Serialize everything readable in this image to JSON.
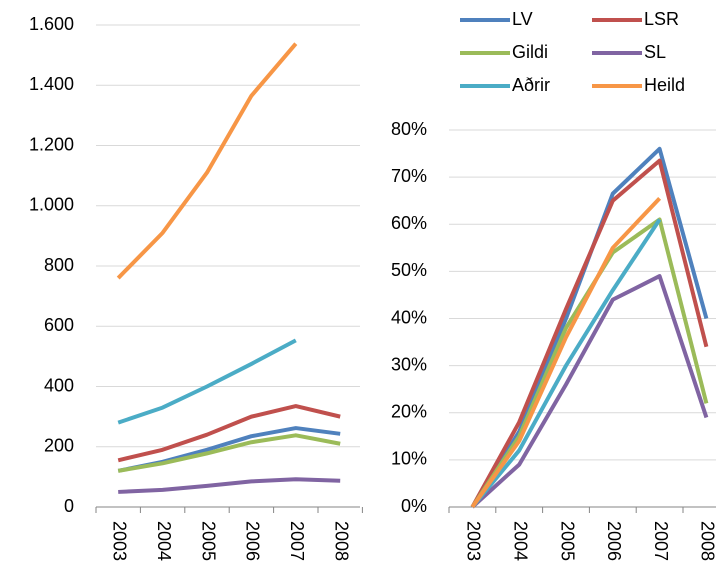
{
  "chart_data": [
    {
      "type": "line",
      "categories": [
        "2003",
        "2004",
        "2005",
        "2006",
        "2007",
        "2008"
      ],
      "ylim": [
        0,
        1600
      ],
      "yticks": [
        0,
        200,
        400,
        600,
        800,
        {
          "value": 1000,
          "label": "1.000"
        },
        {
          "value": 1200,
          "label": "1.200"
        },
        {
          "value": 1400,
          "label": "1.400"
        },
        {
          "value": 1600,
          "label": "1.600"
        }
      ],
      "grid": true,
      "series": [
        {
          "color": "#4f81bd",
          "values": [
            120,
            150,
            190,
            235,
            262,
            243
          ]
        },
        {
          "color": "#c0504d",
          "values": [
            155,
            190,
            240,
            300,
            335,
            300
          ]
        },
        {
          "color": "#9bbb59",
          "values": [
            120,
            145,
            178,
            215,
            238,
            210
          ]
        },
        {
          "color": "#8064a2",
          "values": [
            50,
            57,
            70,
            85,
            92,
            87
          ]
        },
        {
          "color": "#4bacc6",
          "values": [
            280,
            330,
            400,
            475,
            553,
            null
          ]
        },
        {
          "color": "#f79646",
          "values": [
            760,
            910,
            1110,
            1365,
            1538,
            null
          ]
        }
      ]
    },
    {
      "type": "line",
      "categories": [
        "2003",
        "2004",
        "2005",
        "2006",
        "2007",
        "2008"
      ],
      "ylim": [
        0,
        80
      ],
      "yticks": [
        {
          "value": 0,
          "label": "0%"
        },
        {
          "value": 10,
          "label": "10%"
        },
        {
          "value": 20,
          "label": "20%"
        },
        {
          "value": 30,
          "label": "30%"
        },
        {
          "value": 40,
          "label": "40%"
        },
        {
          "value": 50,
          "label": "50%"
        },
        {
          "value": 60,
          "label": "60%"
        },
        {
          "value": 70,
          "label": "70%"
        },
        {
          "value": 80,
          "label": "80%"
        }
      ],
      "grid": true,
      "legend": "top",
      "series": [
        {
          "name": "LV",
          "color": "#4f81bd",
          "values": [
            0,
            16,
            40,
            66.5,
            76,
            40
          ]
        },
        {
          "name": "LSR",
          "color": "#c0504d",
          "values": [
            0,
            18,
            42,
            65,
            73.5,
            34
          ]
        },
        {
          "name": "Gildi",
          "color": "#9bbb59",
          "values": [
            0,
            15,
            38,
            54,
            61,
            22
          ]
        },
        {
          "name": "SL",
          "color": "#8064a2",
          "values": [
            0,
            9,
            26,
            44,
            49,
            19
          ]
        },
        {
          "name": "Aðrir",
          "color": "#4bacc6",
          "values": [
            0,
            12,
            30,
            46,
            61,
            null
          ]
        },
        {
          "name": "Heild",
          "color": "#f79646",
          "values": [
            0,
            14,
            36,
            55,
            65.5,
            null
          ]
        }
      ]
    }
  ]
}
